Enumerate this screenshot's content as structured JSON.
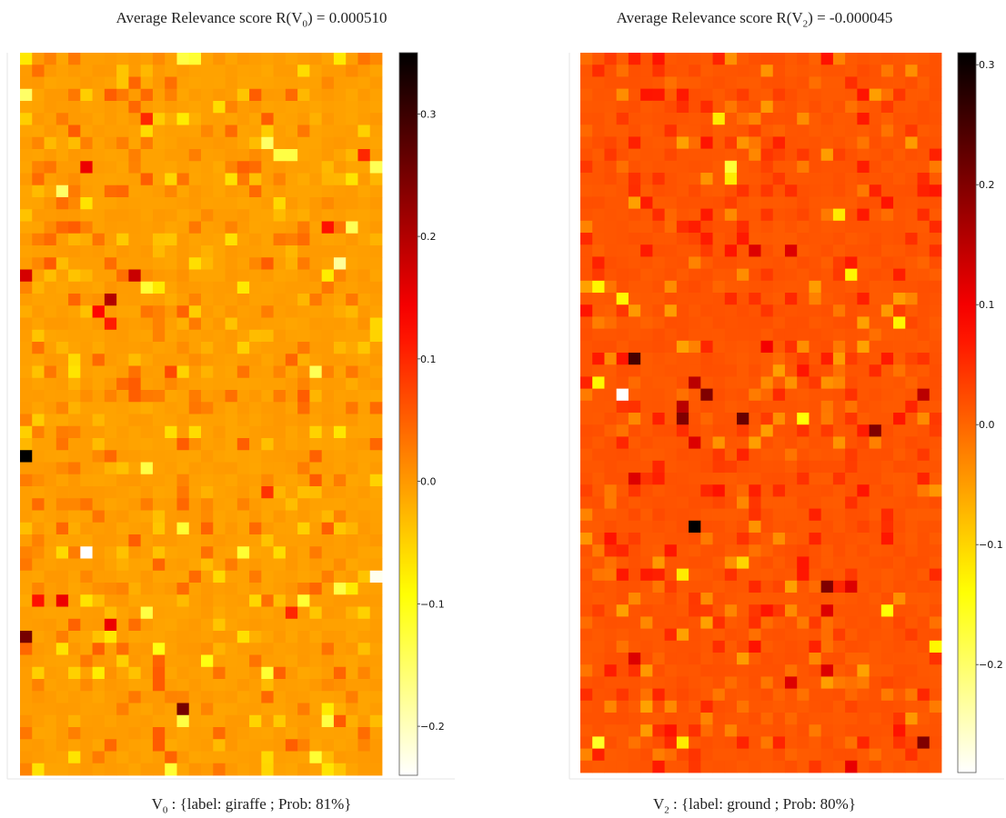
{
  "chart_data": [
    {
      "type": "heatmap",
      "title": "Average Relevance score  R(V",
      "title_sub": "0",
      "title_value": ")  =  0.000510",
      "caption_main": "V",
      "caption_sub": "0",
      "caption_text": " : {label: giraffe ; Prob: 81%}",
      "grid": {
        "rows": 60,
        "cols": 30
      },
      "baseline": -0.005,
      "colorbar": {
        "min": -0.24,
        "max": 0.35,
        "ticks": [
          0.3,
          0.2,
          0.1,
          0.0,
          -0.1,
          -0.2
        ],
        "tick_labels": [
          "0.3",
          "0.2",
          "0.1",
          "0.0",
          "−0.1",
          "−0.2"
        ]
      },
      "colormap": "hot_r",
      "seed": 7,
      "highlights": [
        {
          "r": 0,
          "c": 13,
          "v": -0.13
        },
        {
          "r": 0,
          "c": 14,
          "v": -0.12
        },
        {
          "r": 3,
          "c": 0,
          "v": -0.15
        },
        {
          "r": 5,
          "c": 10,
          "v": 0.1
        },
        {
          "r": 7,
          "c": 20,
          "v": -0.15
        },
        {
          "r": 8,
          "c": 21,
          "v": -0.13
        },
        {
          "r": 8,
          "c": 22,
          "v": -0.13
        },
        {
          "r": 9,
          "c": 5,
          "v": 0.15
        },
        {
          "r": 9,
          "c": 29,
          "v": -0.14
        },
        {
          "r": 8,
          "c": 28,
          "v": 0.1
        },
        {
          "r": 11,
          "c": 3,
          "v": -0.15
        },
        {
          "r": 14,
          "c": 25,
          "v": 0.12
        },
        {
          "r": 14,
          "c": 27,
          "v": -0.14
        },
        {
          "r": 17,
          "c": 26,
          "v": -0.18
        },
        {
          "r": 18,
          "c": 0,
          "v": 0.17
        },
        {
          "r": 18,
          "c": 9,
          "v": 0.18
        },
        {
          "r": 19,
          "c": 10,
          "v": -0.12
        },
        {
          "r": 20,
          "c": 7,
          "v": 0.2
        },
        {
          "r": 21,
          "c": 6,
          "v": 0.13
        },
        {
          "r": 22,
          "c": 7,
          "v": 0.11
        },
        {
          "r": 26,
          "c": 12,
          "v": 0.07
        },
        {
          "r": 26,
          "c": 24,
          "v": -0.14
        },
        {
          "r": 33,
          "c": 0,
          "v": 0.35
        },
        {
          "r": 34,
          "c": 10,
          "v": -0.13
        },
        {
          "r": 36,
          "c": 20,
          "v": 0.09
        },
        {
          "r": 39,
          "c": 13,
          "v": -0.12
        },
        {
          "r": 41,
          "c": 5,
          "v": -0.24
        },
        {
          "r": 41,
          "c": 18,
          "v": -0.12
        },
        {
          "r": 43,
          "c": 29,
          "v": -0.23
        },
        {
          "r": 44,
          "c": 26,
          "v": -0.13
        },
        {
          "r": 45,
          "c": 1,
          "v": 0.12
        },
        {
          "r": 45,
          "c": 3,
          "v": 0.15
        },
        {
          "r": 45,
          "c": 23,
          "v": -0.12
        },
        {
          "r": 46,
          "c": 22,
          "v": 0.1
        },
        {
          "r": 46,
          "c": 10,
          "v": -0.13
        },
        {
          "r": 47,
          "c": 7,
          "v": 0.15
        },
        {
          "r": 48,
          "c": 0,
          "v": 0.25
        },
        {
          "r": 49,
          "c": 11,
          "v": -0.1
        },
        {
          "r": 50,
          "c": 15,
          "v": -0.1
        },
        {
          "r": 51,
          "c": 20,
          "v": -0.12
        },
        {
          "r": 54,
          "c": 13,
          "v": 0.25
        },
        {
          "r": 55,
          "c": 13,
          "v": -0.13
        },
        {
          "r": 55,
          "c": 25,
          "v": -0.13
        },
        {
          "r": 58,
          "c": 24,
          "v": -0.12
        },
        {
          "r": 59,
          "c": 12,
          "v": -0.12
        }
      ]
    },
    {
      "type": "heatmap",
      "title": "Average Relevance score R(V",
      "title_sub": "2",
      "title_value": ")  =  -0.000045",
      "caption_main": "V",
      "caption_sub": "2",
      "caption_text": " : {label: ground ; Prob: 80%}",
      "grid": {
        "rows": 60,
        "cols": 30
      },
      "baseline": 0.015,
      "colorbar": {
        "min": -0.29,
        "max": 0.31,
        "ticks": [
          0.3,
          0.2,
          0.1,
          0.0,
          -0.1,
          -0.2
        ],
        "tick_labels": [
          "0.3",
          "0.2",
          "0.1",
          "0.0",
          "−0.1",
          "−0.2"
        ]
      },
      "colormap": "hot_r",
      "seed": 19,
      "highlights": [
        {
          "r": 5,
          "c": 11,
          "v": -0.12
        },
        {
          "r": 9,
          "c": 12,
          "v": -0.17
        },
        {
          "r": 10,
          "c": 12,
          "v": -0.12
        },
        {
          "r": 13,
          "c": 21,
          "v": -0.12
        },
        {
          "r": 16,
          "c": 14,
          "v": 0.12
        },
        {
          "r": 16,
          "c": 17,
          "v": 0.12
        },
        {
          "r": 18,
          "c": 22,
          "v": -0.13
        },
        {
          "r": 19,
          "c": 1,
          "v": -0.13
        },
        {
          "r": 22,
          "c": 26,
          "v": -0.13
        },
        {
          "r": 20,
          "c": 3,
          "v": -0.13
        },
        {
          "r": 25,
          "c": 4,
          "v": 0.25
        },
        {
          "r": 24,
          "c": 15,
          "v": 0.1
        },
        {
          "r": 27,
          "c": 9,
          "v": 0.15
        },
        {
          "r": 27,
          "c": 1,
          "v": -0.13
        },
        {
          "r": 28,
          "c": 3,
          "v": -0.29
        },
        {
          "r": 28,
          "c": 10,
          "v": 0.2
        },
        {
          "r": 28,
          "c": 28,
          "v": 0.15
        },
        {
          "r": 29,
          "c": 8,
          "v": 0.15
        },
        {
          "r": 30,
          "c": 8,
          "v": 0.2
        },
        {
          "r": 30,
          "c": 13,
          "v": 0.22
        },
        {
          "r": 30,
          "c": 18,
          "v": -0.14
        },
        {
          "r": 31,
          "c": 24,
          "v": 0.2
        },
        {
          "r": 32,
          "c": 9,
          "v": 0.12
        },
        {
          "r": 35,
          "c": 4,
          "v": 0.12
        },
        {
          "r": 39,
          "c": 9,
          "v": 0.31
        },
        {
          "r": 42,
          "c": 13,
          "v": -0.1
        },
        {
          "r": 43,
          "c": 8,
          "v": -0.12
        },
        {
          "r": 44,
          "c": 20,
          "v": 0.2
        },
        {
          "r": 44,
          "c": 22,
          "v": 0.12
        },
        {
          "r": 46,
          "c": 20,
          "v": 0.12
        },
        {
          "r": 46,
          "c": 25,
          "v": -0.14
        },
        {
          "r": 49,
          "c": 29,
          "v": -0.13
        },
        {
          "r": 50,
          "c": 4,
          "v": 0.12
        },
        {
          "r": 51,
          "c": 20,
          "v": 0.12
        },
        {
          "r": 52,
          "c": 17,
          "v": 0.12
        },
        {
          "r": 57,
          "c": 8,
          "v": -0.12
        },
        {
          "r": 57,
          "c": 28,
          "v": 0.2
        },
        {
          "r": 57,
          "c": 1,
          "v": -0.16
        },
        {
          "r": 59,
          "c": 22,
          "v": 0.11
        }
      ]
    }
  ]
}
